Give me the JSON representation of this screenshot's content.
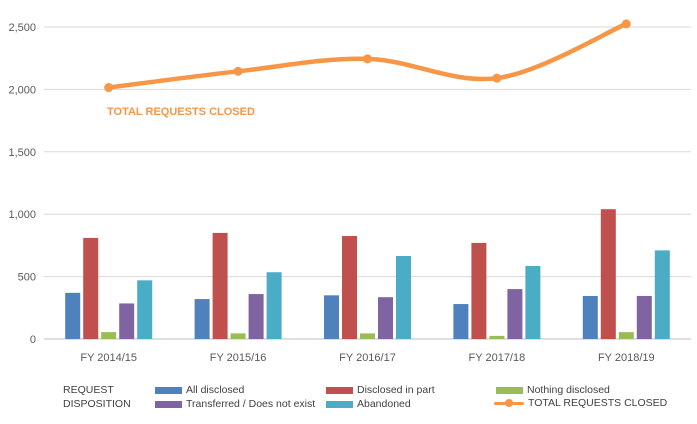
{
  "chart_data": {
    "type": "bar",
    "categories": [
      "FY 2014/15",
      "FY 2015/16",
      "FY 2016/17",
      "FY 2017/18",
      "FY 2018/19"
    ],
    "series": [
      {
        "name": "All disclosed",
        "color": "#4f81bd",
        "values": [
          370,
          320,
          350,
          280,
          345
        ]
      },
      {
        "name": "Disclosed in part",
        "color": "#c0504d",
        "values": [
          810,
          850,
          825,
          770,
          1040
        ]
      },
      {
        "name": "Nothing disclosed",
        "color": "#9bbb59",
        "values": [
          55,
          45,
          45,
          25,
          55
        ]
      },
      {
        "name": "Transferred / Does not exist",
        "color": "#8064a2",
        "values": [
          285,
          360,
          335,
          400,
          345
        ]
      },
      {
        "name": "Abandoned",
        "color": "#4bacc6",
        "values": [
          470,
          535,
          665,
          585,
          710
        ]
      }
    ],
    "line_series": {
      "name": "TOTAL REQUESTS CLOSED",
      "color": "#f79646",
      "values": [
        2015,
        2145,
        2245,
        2090,
        2525
      ]
    },
    "line_label": "TOTAL REQUESTS CLOSED",
    "ylim": [
      0,
      2500
    ],
    "yticks": [
      0,
      500,
      1000,
      1500,
      2000,
      2500
    ],
    "ytick_labels": [
      "0",
      "500",
      "1,000",
      "1,500",
      "2,000",
      "2,500"
    ],
    "grid": true,
    "legend_title_line1": "REQUEST",
    "legend_title_line2": "DISPOSITION"
  }
}
